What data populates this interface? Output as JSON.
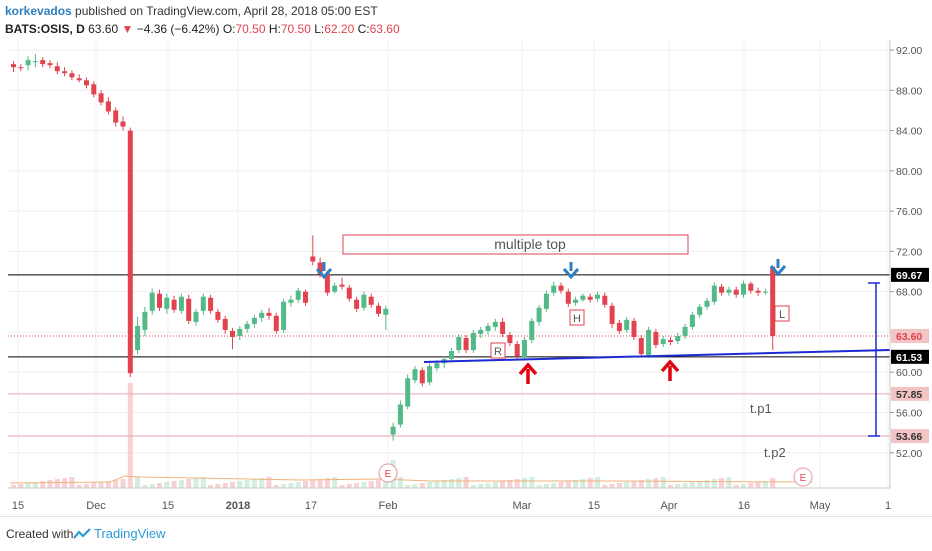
{
  "header": {
    "author": "korkevados",
    "published": "published on TradingView.com, April 28, 2018 05:00 EST",
    "symbol": "BATS:OSIS, D",
    "last": "63.60",
    "change": "−4.36 (−6.42%)",
    "o_label": "O:",
    "o_value": "70.50",
    "h_label": "H:",
    "h_value": "70.50",
    "l_label": "L:",
    "l_value": "62.20",
    "c_label": "C:",
    "c_value": "63.60"
  },
  "chart_data": {
    "type": "candlestick",
    "symbol": "BATS:OSIS",
    "interval": "D",
    "y_range": [
      48.5,
      93.0
    ],
    "y_ticks": [
      "92.00",
      "88.00",
      "84.00",
      "80.00",
      "76.00",
      "72.00",
      "68.00",
      "64.00",
      "60.00",
      "56.00",
      "52.00"
    ],
    "x_labels": [
      "15",
      "Dec",
      "15",
      "2018",
      "17",
      "Feb",
      "Mar",
      "15",
      "Apr",
      "16",
      "May",
      "1"
    ],
    "price_labels": [
      {
        "text": "69.67",
        "value": 69.67,
        "bg": "#000000",
        "fg": "#ffffff"
      },
      {
        "text": "63.60",
        "value": 63.6,
        "bg": "#f2c4c4",
        "fg": "#e2434f"
      },
      {
        "text": "61.53",
        "value": 61.53,
        "bg": "#000000",
        "fg": "#ffffff"
      },
      {
        "text": "57.85",
        "value": 57.85,
        "bg": "#f2c4c4",
        "fg": "#333333"
      },
      {
        "text": "53.66",
        "value": 53.66,
        "bg": "#f2c4c4",
        "fg": "#333333"
      }
    ],
    "horizontal_lines": [
      {
        "value": 69.67,
        "color": "#000000",
        "style": "solid"
      },
      {
        "value": 61.53,
        "color": "#000000",
        "style": "solid"
      },
      {
        "value": 63.6,
        "color": "#e2434f",
        "style": "dotted"
      },
      {
        "value": 57.85,
        "color": "#e7a6b4",
        "style": "solid"
      },
      {
        "value": 53.66,
        "color": "#e7a6b4",
        "style": "solid"
      }
    ],
    "annotations": [
      {
        "text": "multiple top",
        "type": "boxed-text"
      },
      {
        "text": "R",
        "type": "pattern-label"
      },
      {
        "text": "H",
        "type": "pattern-label"
      },
      {
        "text": "L",
        "type": "pattern-label"
      },
      {
        "text": "t.p1",
        "type": "text"
      },
      {
        "text": "t.p2",
        "type": "text"
      },
      {
        "text": "E",
        "type": "earnings-marker"
      },
      {
        "text": "E",
        "type": "earnings-marker"
      }
    ],
    "colors": {
      "up": "#53b987",
      "down": "#e2434f",
      "trendline": "#1b2bd3",
      "arrow_up": "#e3000f",
      "arrow_down": "#2d7fc1"
    },
    "candles": [
      [
        90.6,
        90.9,
        89.8,
        90.3
      ],
      [
        90.3,
        90.6,
        89.9,
        90.2
      ],
      [
        90.5,
        91.4,
        90.0,
        91.0
      ],
      [
        90.8,
        91.6,
        90.3,
        90.9
      ],
      [
        91.0,
        91.3,
        90.3,
        90.6
      ],
      [
        90.7,
        91.0,
        90.2,
        90.5
      ],
      [
        90.4,
        90.8,
        89.6,
        89.9
      ],
      [
        89.9,
        90.3,
        89.4,
        89.7
      ],
      [
        89.7,
        90.0,
        89.0,
        89.3
      ],
      [
        89.2,
        89.6,
        88.8,
        89.0
      ],
      [
        89.0,
        89.3,
        88.2,
        88.5
      ],
      [
        88.6,
        88.9,
        87.3,
        87.6
      ],
      [
        87.7,
        88.0,
        86.5,
        86.8
      ],
      [
        86.9,
        87.3,
        85.6,
        85.9
      ],
      [
        86.0,
        86.3,
        84.4,
        84.8
      ],
      [
        84.9,
        85.4,
        84.0,
        84.4
      ],
      [
        84.0,
        84.3,
        59.5,
        59.9
      ],
      [
        62.2,
        65.5,
        61.8,
        64.6
      ],
      [
        64.2,
        66.5,
        63.6,
        66.0
      ],
      [
        66.1,
        68.3,
        65.7,
        67.9
      ],
      [
        67.8,
        68.2,
        66.1,
        66.4
      ],
      [
        66.3,
        67.8,
        65.8,
        67.4
      ],
      [
        67.2,
        67.6,
        65.9,
        66.2
      ],
      [
        66.1,
        67.8,
        65.8,
        67.5
      ],
      [
        67.3,
        67.7,
        64.8,
        65.1
      ],
      [
        65.0,
        66.3,
        64.6,
        66.0
      ],
      [
        66.1,
        67.8,
        65.7,
        67.5
      ],
      [
        67.4,
        67.7,
        65.8,
        66.1
      ],
      [
        66.0,
        66.3,
        64.9,
        65.2
      ],
      [
        65.3,
        65.6,
        63.8,
        64.2
      ],
      [
        64.1,
        64.4,
        62.3,
        63.5
      ],
      [
        63.6,
        64.6,
        63.2,
        64.3
      ],
      [
        64.3,
        65.1,
        63.9,
        64.8
      ],
      [
        64.8,
        65.7,
        64.4,
        65.4
      ],
      [
        65.4,
        66.2,
        65.0,
        65.9
      ],
      [
        65.9,
        66.4,
        65.2,
        65.6
      ],
      [
        65.6,
        65.9,
        63.8,
        64.1
      ],
      [
        64.2,
        67.3,
        63.9,
        67.0
      ],
      [
        66.9,
        67.6,
        66.5,
        67.2
      ],
      [
        67.2,
        68.4,
        66.9,
        68.1
      ],
      [
        68.0,
        68.2,
        66.6,
        66.9
      ],
      [
        71.5,
        73.6,
        70.6,
        71.0
      ],
      [
        70.9,
        71.4,
        69.4,
        69.7
      ],
      [
        69.8,
        70.1,
        67.6,
        67.9
      ],
      [
        68.0,
        68.9,
        67.8,
        68.6
      ],
      [
        68.7,
        69.4,
        68.2,
        68.5
      ],
      [
        68.4,
        68.7,
        67.0,
        67.3
      ],
      [
        67.2,
        67.5,
        66.0,
        66.3
      ],
      [
        66.4,
        68.0,
        66.1,
        67.7
      ],
      [
        67.5,
        67.8,
        66.4,
        66.7
      ],
      [
        66.6,
        66.9,
        65.5,
        65.8
      ],
      [
        65.7,
        66.6,
        64.2,
        66.3
      ],
      [
        53.8,
        55.0,
        53.2,
        54.6
      ],
      [
        54.8,
        57.2,
        54.5,
        56.8
      ],
      [
        56.6,
        59.8,
        56.3,
        59.4
      ],
      [
        59.2,
        60.6,
        58.9,
        60.3
      ],
      [
        60.2,
        60.5,
        58.6,
        58.9
      ],
      [
        59.0,
        60.9,
        58.7,
        60.6
      ],
      [
        60.4,
        61.2,
        60.1,
        60.9
      ],
      [
        60.9,
        61.6,
        60.4,
        61.3
      ],
      [
        61.3,
        62.4,
        61.0,
        62.1
      ],
      [
        62.2,
        63.8,
        61.9,
        63.5
      ],
      [
        63.4,
        63.7,
        61.9,
        62.2
      ],
      [
        62.2,
        64.2,
        61.9,
        63.9
      ],
      [
        63.8,
        64.5,
        63.4,
        64.2
      ],
      [
        64.1,
        64.9,
        63.7,
        64.6
      ],
      [
        64.5,
        65.3,
        64.1,
        65.0
      ],
      [
        65.0,
        65.4,
        63.5,
        63.8
      ],
      [
        63.7,
        64.0,
        62.6,
        62.9
      ],
      [
        62.8,
        63.1,
        61.3,
        61.6
      ],
      [
        61.5,
        63.5,
        61.2,
        63.2
      ],
      [
        63.2,
        65.4,
        62.9,
        65.1
      ],
      [
        65.0,
        66.7,
        64.6,
        66.4
      ],
      [
        66.3,
        68.1,
        66.0,
        67.8
      ],
      [
        67.9,
        69.0,
        67.6,
        68.6
      ],
      [
        68.6,
        68.9,
        67.8,
        68.1
      ],
      [
        68.0,
        68.3,
        66.5,
        66.8
      ],
      [
        66.9,
        67.5,
        66.6,
        67.2
      ],
      [
        67.2,
        67.8,
        67.0,
        67.6
      ],
      [
        67.5,
        67.8,
        66.9,
        67.2
      ],
      [
        67.3,
        68.0,
        67.0,
        67.7
      ],
      [
        67.6,
        67.9,
        66.4,
        66.7
      ],
      [
        66.6,
        66.9,
        64.4,
        64.8
      ],
      [
        64.9,
        65.2,
        63.8,
        64.1
      ],
      [
        64.2,
        65.5,
        63.9,
        65.2
      ],
      [
        65.1,
        65.4,
        63.2,
        63.5
      ],
      [
        63.4,
        63.7,
        61.5,
        61.8
      ],
      [
        61.7,
        64.5,
        61.4,
        64.2
      ],
      [
        64.0,
        64.3,
        62.4,
        62.7
      ],
      [
        62.8,
        63.6,
        62.5,
        63.3
      ],
      [
        63.2,
        63.5,
        62.7,
        63.0
      ],
      [
        63.1,
        63.9,
        62.8,
        63.6
      ],
      [
        63.6,
        64.8,
        63.3,
        64.5
      ],
      [
        64.5,
        66.0,
        64.2,
        65.7
      ],
      [
        65.7,
        66.8,
        65.4,
        66.5
      ],
      [
        66.5,
        67.4,
        66.2,
        67.1
      ],
      [
        67.0,
        68.9,
        66.7,
        68.6
      ],
      [
        68.5,
        68.8,
        67.6,
        67.9
      ],
      [
        67.9,
        68.5,
        67.6,
        68.2
      ],
      [
        68.2,
        68.5,
        67.4,
        67.7
      ],
      [
        67.7,
        69.1,
        67.4,
        68.8
      ],
      [
        68.8,
        69.0,
        67.8,
        68.1
      ],
      [
        68.1,
        68.4,
        67.6,
        67.9
      ],
      [
        68.0,
        68.3,
        67.7,
        68.0
      ],
      [
        70.5,
        70.5,
        62.2,
        63.6
      ]
    ]
  }
}
